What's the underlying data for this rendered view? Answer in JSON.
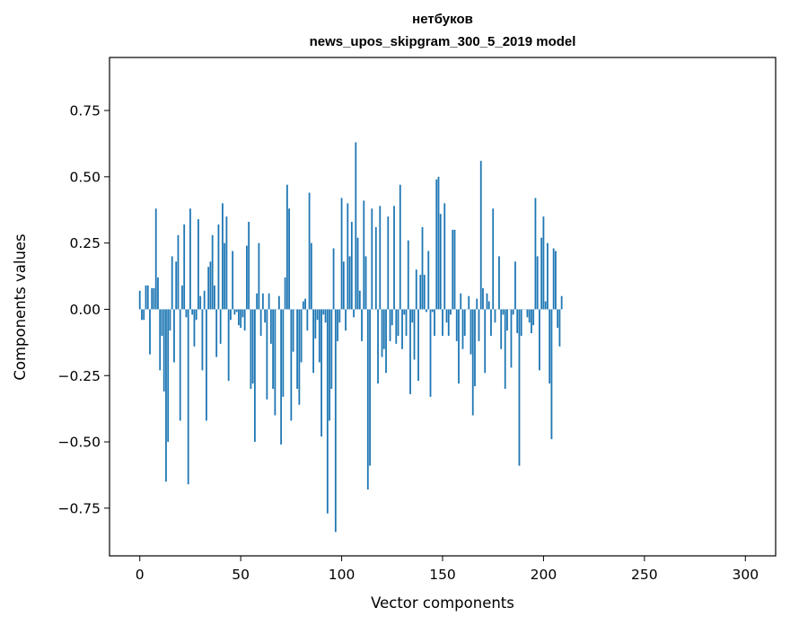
{
  "chart_data": {
    "type": "bar",
    "title": "нетбуков",
    "subtitle": "news_upos_skipgram_300_5_2019 model",
    "xlabel": "Vector components",
    "ylabel": "Components values",
    "xlim": [
      -15,
      315
    ],
    "ylim": [
      -0.93,
      0.95
    ],
    "xticks": [
      0,
      50,
      100,
      150,
      200,
      250,
      300
    ],
    "xtick_labels": [
      "0",
      "50",
      "100",
      "150",
      "200",
      "250",
      "300"
    ],
    "yticks": [
      -0.75,
      -0.5,
      -0.25,
      0.0,
      0.25,
      0.5,
      0.75
    ],
    "ytick_labels": [
      "−0.75",
      "−0.50",
      "−0.25",
      "0.00",
      "0.25",
      "0.50",
      "0.75"
    ],
    "grid": false,
    "legend": false,
    "bar_color": "#1f77b4",
    "values": [
      0.07,
      -0.04,
      -0.04,
      0.09,
      0.09,
      -0.17,
      0.08,
      0.08,
      0.38,
      0.12,
      -0.23,
      -0.1,
      -0.31,
      -0.65,
      -0.5,
      -0.08,
      0.2,
      -0.2,
      0.18,
      0.28,
      -0.42,
      0.09,
      0.32,
      -0.03,
      -0.66,
      0.38,
      -0.02,
      -0.14,
      -0.04,
      0.34,
      0.05,
      -0.23,
      0.07,
      -0.42,
      0.16,
      0.18,
      0.28,
      0.09,
      -0.18,
      0.32,
      -0.13,
      0.4,
      0.25,
      0.35,
      -0.27,
      -0.04,
      0.22,
      -0.02,
      -0.01,
      -0.06,
      -0.07,
      -0.03,
      -0.08,
      0.24,
      0.33,
      -0.3,
      -0.28,
      -0.5,
      0.06,
      0.25,
      -0.1,
      0.06,
      -0.05,
      -0.34,
      0.06,
      -0.13,
      -0.3,
      -0.4,
      0.0,
      0.05,
      -0.51,
      -0.33,
      0.12,
      0.47,
      0.38,
      -0.42,
      -0.16,
      0.0,
      -0.3,
      -0.36,
      -0.2,
      0.03,
      0.04,
      -0.08,
      0.44,
      0.25,
      -0.24,
      -0.11,
      -0.04,
      -0.2,
      -0.48,
      -0.02,
      -0.05,
      -0.77,
      -0.42,
      -0.3,
      0.23,
      -0.84,
      -0.12,
      -0.05,
      0.42,
      0.18,
      -0.08,
      0.4,
      0.2,
      0.33,
      -0.03,
      0.63,
      0.27,
      0.07,
      -0.12,
      0.41,
      0.2,
      -0.68,
      -0.59,
      0.38,
      0.0,
      0.31,
      -0.28,
      0.39,
      -0.18,
      -0.15,
      -0.24,
      0.35,
      -0.12,
      -0.06,
      0.39,
      -0.13,
      -0.1,
      0.47,
      -0.15,
      -0.02,
      -0.1,
      0.26,
      -0.32,
      -0.05,
      -0.19,
      0.15,
      -0.27,
      0.13,
      0.31,
      0.13,
      -0.01,
      0.22,
      -0.33,
      -0.01,
      -0.1,
      0.49,
      0.5,
      0.36,
      -0.1,
      0.4,
      -0.05,
      -0.1,
      -0.02,
      0.3,
      0.3,
      -0.12,
      -0.28,
      0.06,
      -0.15,
      -0.1,
      0.0,
      0.05,
      -0.17,
      -0.4,
      -0.29,
      0.04,
      -0.12,
      0.56,
      0.08,
      -0.24,
      0.06,
      0.03,
      -0.1,
      0.38,
      -0.05,
      0.0,
      0.2,
      -0.15,
      -0.02,
      -0.3,
      -0.08,
      0.0,
      -0.22,
      -0.02,
      0.18,
      -0.09,
      -0.59,
      -0.1,
      0.0,
      0.0,
      -0.03,
      -0.05,
      -0.09,
      -0.06,
      0.42,
      0.2,
      -0.23,
      0.27,
      0.35,
      0.03,
      0.25,
      -0.28,
      -0.49,
      0.23,
      0.22,
      -0.07,
      -0.14,
      0.05
    ]
  }
}
